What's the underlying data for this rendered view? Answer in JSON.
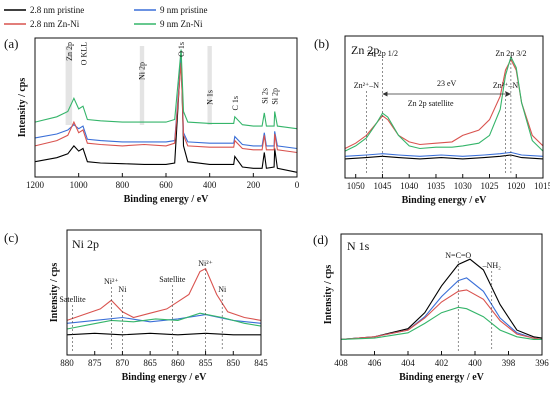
{
  "legend": [
    {
      "label": "2.8 nm pristine",
      "color": "#000000"
    },
    {
      "label": "9 nm pristine",
      "color": "#3a6fd8"
    },
    {
      "label": "2.8 nm Zn-Ni",
      "color": "#d9534f"
    },
    {
      "label": "9 nm Zn-Ni",
      "color": "#35b56a"
    }
  ],
  "chart_data": [
    {
      "panel": "(a)",
      "type": "line",
      "title": "",
      "xlabel": "Binding energy / eV",
      "ylabel": "Intensity / cps",
      "xlim": [
        1200,
        0
      ],
      "xticks": [
        1200,
        1000,
        800,
        600,
        400,
        200,
        0
      ],
      "series": [
        {
          "name": "2.8 nm pristine",
          "color": "#000000",
          "x": [
            1200,
            1100,
            1050,
            1022,
            1000,
            980,
            960,
            900,
            800,
            700,
            600,
            560,
            531,
            520,
            500,
            400,
            290,
            285,
            250,
            200,
            160,
            150,
            140,
            105,
            102,
            90,
            0
          ],
          "y": [
            0.1,
            0.13,
            0.16,
            0.22,
            0.18,
            0.2,
            0.1,
            0.09,
            0.085,
            0.08,
            0.08,
            0.09,
            0.92,
            0.22,
            0.1,
            0.08,
            0.08,
            0.14,
            0.06,
            0.05,
            0.05,
            0.17,
            0.05,
            0.06,
            0.2,
            0.05,
            0.02
          ]
        },
        {
          "name": "9 nm pristine",
          "color": "#3a6fd8",
          "x": [
            1200,
            1100,
            1050,
            1022,
            1000,
            980,
            960,
            900,
            800,
            700,
            600,
            560,
            531,
            520,
            500,
            400,
            290,
            285,
            250,
            200,
            160,
            150,
            140,
            105,
            102,
            90,
            0
          ],
          "y": [
            0.28,
            0.31,
            0.34,
            0.38,
            0.35,
            0.37,
            0.27,
            0.26,
            0.25,
            0.25,
            0.25,
            0.26,
            0.88,
            0.32,
            0.25,
            0.24,
            0.24,
            0.29,
            0.23,
            0.22,
            0.22,
            0.32,
            0.22,
            0.22,
            0.33,
            0.22,
            0.2
          ]
        },
        {
          "name": "2.8 nm Zn-Ni",
          "color": "#d9534f",
          "x": [
            1200,
            1100,
            1050,
            1022,
            1000,
            980,
            960,
            900,
            800,
            700,
            600,
            560,
            531,
            520,
            500,
            400,
            290,
            285,
            250,
            200,
            160,
            150,
            140,
            105,
            102,
            90,
            0
          ],
          "y": [
            0.22,
            0.26,
            0.3,
            0.4,
            0.32,
            0.34,
            0.24,
            0.23,
            0.22,
            0.23,
            0.22,
            0.24,
            0.85,
            0.3,
            0.22,
            0.21,
            0.21,
            0.26,
            0.2,
            0.19,
            0.19,
            0.3,
            0.19,
            0.19,
            0.31,
            0.19,
            0.17
          ]
        },
        {
          "name": "9 nm Zn-Ni",
          "color": "#35b56a",
          "x": [
            1200,
            1100,
            1050,
            1022,
            1000,
            980,
            960,
            900,
            800,
            700,
            600,
            560,
            531,
            520,
            500,
            400,
            290,
            285,
            250,
            200,
            160,
            150,
            140,
            105,
            102,
            90,
            0
          ],
          "y": [
            0.4,
            0.44,
            0.48,
            0.58,
            0.5,
            0.52,
            0.42,
            0.41,
            0.4,
            0.4,
            0.4,
            0.42,
            0.95,
            0.48,
            0.4,
            0.39,
            0.39,
            0.44,
            0.38,
            0.37,
            0.37,
            0.47,
            0.37,
            0.37,
            0.48,
            0.37,
            0.35
          ]
        }
      ],
      "annotations": [
        {
          "text": "Zn 2p",
          "x": 1045
        },
        {
          "text": "O KLL",
          "x": 978
        },
        {
          "text": "Ni 2p",
          "x": 712
        },
        {
          "text": "O 1s",
          "x": 531
        },
        {
          "text": "N 1s",
          "x": 400
        },
        {
          "text": "C 1s",
          "x": 285
        },
        {
          "text": "Si 2s",
          "x": 150
        },
        {
          "text": "Si 2p",
          "x": 102
        }
      ],
      "highlight_bands": [
        [
          1060,
          1030
        ],
        [
          720,
          700
        ],
        [
          410,
          390
        ]
      ]
    },
    {
      "panel": "(b)",
      "type": "line",
      "title": "Zn 2p",
      "xlabel": "Binding energy / eV",
      "ylabel": "",
      "xlim": [
        1052,
        1015
      ],
      "xticks": [
        1050,
        1045,
        1040,
        1035,
        1030,
        1025,
        1020,
        1015
      ],
      "series": [
        {
          "name": "2.8 nm pristine",
          "color": "#000000",
          "x": [
            1052,
            1048,
            1045,
            1042,
            1038,
            1034,
            1030,
            1026,
            1023,
            1021,
            1019,
            1015
          ],
          "y": [
            0.12,
            0.13,
            0.14,
            0.13,
            0.12,
            0.13,
            0.12,
            0.13,
            0.14,
            0.15,
            0.13,
            0.12
          ]
        },
        {
          "name": "9 nm pristine",
          "color": "#3a6fd8",
          "x": [
            1052,
            1048,
            1045,
            1042,
            1038,
            1034,
            1030,
            1026,
            1023,
            1021,
            1019,
            1015
          ],
          "y": [
            0.14,
            0.15,
            0.16,
            0.15,
            0.14,
            0.15,
            0.14,
            0.15,
            0.16,
            0.17,
            0.15,
            0.14
          ]
        },
        {
          "name": "2.8 nm Zn-Ni",
          "color": "#d9534f",
          "x": [
            1052,
            1050,
            1048,
            1046,
            1045,
            1044,
            1042,
            1040,
            1038,
            1035,
            1032,
            1030,
            1027,
            1025,
            1023,
            1022,
            1021,
            1020,
            1019,
            1017,
            1015
          ],
          "y": [
            0.2,
            0.24,
            0.3,
            0.4,
            0.45,
            0.42,
            0.3,
            0.25,
            0.23,
            0.24,
            0.25,
            0.3,
            0.34,
            0.42,
            0.6,
            0.8,
            0.88,
            0.8,
            0.55,
            0.3,
            0.22
          ]
        },
        {
          "name": "9 nm Zn-Ni",
          "color": "#35b56a",
          "x": [
            1052,
            1050,
            1048,
            1046,
            1045,
            1044,
            1042,
            1040,
            1038,
            1035,
            1032,
            1030,
            1027,
            1025,
            1023,
            1022,
            1021,
            1020,
            1019,
            1017,
            1015
          ],
          "y": [
            0.18,
            0.22,
            0.28,
            0.4,
            0.47,
            0.44,
            0.3,
            0.22,
            0.2,
            0.21,
            0.21,
            0.22,
            0.24,
            0.3,
            0.5,
            0.76,
            0.9,
            0.82,
            0.55,
            0.26,
            0.18
          ]
        }
      ],
      "annotations": [
        {
          "text": "Zn 2p 1/2",
          "x": 1045
        },
        {
          "text": "Zn 2p 3/2",
          "x": 1021
        },
        {
          "text": "Zn²⁺–N",
          "x": 1048
        },
        {
          "text": "Zn²⁺–N",
          "x": 1022
        },
        {
          "text": "23 eV",
          "x": 1033
        },
        {
          "text": "Zn 2p satellite",
          "x": 1036
        }
      ]
    },
    {
      "panel": "(c)",
      "type": "line",
      "title": "Ni 2p",
      "xlabel": "Binding energy / eV",
      "ylabel": "Intensity / cps",
      "xlim": [
        880,
        845
      ],
      "xticks": [
        880,
        875,
        870,
        865,
        860,
        855,
        850,
        845
      ],
      "series": [
        {
          "name": "2.8 nm pristine",
          "color": "#000000",
          "x": [
            880,
            875,
            870,
            865,
            860,
            855,
            850,
            845
          ],
          "y": [
            0.12,
            0.13,
            0.12,
            0.13,
            0.12,
            0.13,
            0.12,
            0.12
          ]
        },
        {
          "name": "9 nm pristine",
          "color": "#3a6fd8",
          "x": [
            880,
            875,
            870,
            865,
            860,
            855,
            850,
            845
          ],
          "y": [
            0.2,
            0.22,
            0.24,
            0.21,
            0.23,
            0.26,
            0.22,
            0.2
          ]
        },
        {
          "name": "2.8 nm Zn-Ni",
          "color": "#d9534f",
          "x": [
            880,
            877,
            874,
            872,
            870,
            868,
            865,
            862,
            860,
            858,
            856,
            855,
            853,
            851,
            848,
            845
          ],
          "y": [
            0.22,
            0.26,
            0.3,
            0.36,
            0.28,
            0.24,
            0.27,
            0.3,
            0.35,
            0.4,
            0.56,
            0.58,
            0.4,
            0.28,
            0.24,
            0.22
          ]
        },
        {
          "name": "9 nm Zn-Ni",
          "color": "#35b56a",
          "x": [
            880,
            876,
            872,
            868,
            864,
            860,
            856,
            852,
            848,
            845
          ],
          "y": [
            0.16,
            0.19,
            0.22,
            0.21,
            0.23,
            0.22,
            0.27,
            0.24,
            0.2,
            0.18
          ]
        }
      ],
      "annotations": [
        {
          "text": "Satellite",
          "x": 879
        },
        {
          "text": "Ni²⁺",
          "x": 872
        },
        {
          "text": "Ni",
          "x": 870
        },
        {
          "text": "Satellite",
          "x": 861
        },
        {
          "text": "Ni²⁺",
          "x": 855
        },
        {
          "text": "Ni",
          "x": 852
        }
      ]
    },
    {
      "panel": "(d)",
      "type": "line",
      "title": "N 1s",
      "xlabel": "Binding energy / eV",
      "ylabel": "Intensity / cps",
      "xlim": [
        408,
        396
      ],
      "xticks": [
        408,
        406,
        404,
        402,
        400,
        398,
        396
      ],
      "series": [
        {
          "name": "2.8 nm pristine",
          "color": "#000000",
          "x": [
            408,
            406,
            404,
            403,
            402,
            401,
            400.3,
            399.5,
            398.5,
            397.5,
            396.5,
            396
          ],
          "y": [
            0.1,
            0.12,
            0.18,
            0.3,
            0.5,
            0.66,
            0.7,
            0.62,
            0.36,
            0.17,
            0.12,
            0.11
          ]
        },
        {
          "name": "9 nm pristine",
          "color": "#3a6fd8",
          "x": [
            408,
            406,
            404,
            403,
            402,
            401,
            400.5,
            399.5,
            398.5,
            397.5,
            396.5,
            396
          ],
          "y": [
            0.1,
            0.12,
            0.17,
            0.27,
            0.42,
            0.54,
            0.56,
            0.46,
            0.26,
            0.15,
            0.11,
            0.1
          ]
        },
        {
          "name": "2.8 nm Zn-Ni",
          "color": "#d9534f",
          "x": [
            408,
            406,
            404,
            403,
            402,
            401,
            400.5,
            399.5,
            398.5,
            397.5,
            396.5,
            396
          ],
          "y": [
            0.1,
            0.12,
            0.17,
            0.26,
            0.38,
            0.46,
            0.47,
            0.4,
            0.24,
            0.14,
            0.11,
            0.1
          ]
        },
        {
          "name": "9 nm Zn-Ni",
          "color": "#35b56a",
          "x": [
            408,
            406,
            404,
            403,
            402,
            401,
            400.5,
            399.5,
            398.5,
            397.5,
            396.5,
            396
          ],
          "y": [
            0.1,
            0.11,
            0.15,
            0.22,
            0.3,
            0.34,
            0.33,
            0.27,
            0.17,
            0.12,
            0.1,
            0.1
          ]
        }
      ],
      "annotations": [
        {
          "text": "N=C=O",
          "x": 401
        },
        {
          "text": "–NH₂",
          "x": 399
        }
      ]
    }
  ]
}
